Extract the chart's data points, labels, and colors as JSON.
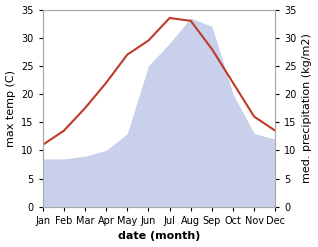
{
  "months": [
    "Jan",
    "Feb",
    "Mar",
    "Apr",
    "May",
    "Jun",
    "Jul",
    "Aug",
    "Sep",
    "Oct",
    "Nov",
    "Dec"
  ],
  "max_temp": [
    11,
    13.5,
    17.5,
    22,
    27,
    29.5,
    33.5,
    33,
    28,
    22,
    16,
    13.5
  ],
  "precipitation": [
    8.5,
    8.5,
    9,
    10,
    13,
    25,
    29,
    33.5,
    32,
    20,
    13,
    12
  ],
  "temp_color": "#c0392b",
  "precip_fill_color": "#c8d0ec",
  "ylim": [
    0,
    35
  ],
  "yticks": [
    0,
    5,
    10,
    15,
    20,
    25,
    30,
    35
  ],
  "xlabel": "date (month)",
  "ylabel_left": "max temp (C)",
  "ylabel_right": "med. precipitation (kg/m2)",
  "label_fontsize": 8,
  "tick_fontsize": 7,
  "spine_color": "#aaaaaa",
  "background_color": "#ffffff"
}
